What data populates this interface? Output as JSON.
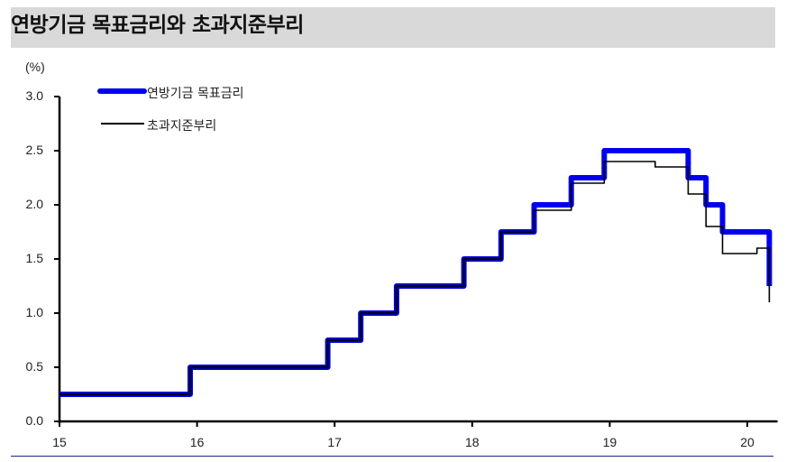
{
  "header": {
    "title": "연방기금 목표금리와 초과지준부리"
  },
  "colors": {
    "fed_target": "#0000ee",
    "fed_target_dark": "#000090",
    "ioer": "#000000",
    "title_bg": "#d9d9d9"
  },
  "chart_data": {
    "type": "line",
    "title": "연방기금 목표금리와 초과지준부리",
    "ylabel": "(%)",
    "xlabel": "",
    "ylim": [
      0.0,
      3.0
    ],
    "yticks": [
      "0.0",
      "0.5",
      "1.0",
      "1.5",
      "2.0",
      "2.5",
      "3.0"
    ],
    "xticks": [
      "15",
      "16",
      "17",
      "18",
      "19",
      "20"
    ],
    "xlim": [
      15,
      20.22
    ],
    "legend": [
      "연방기금 목표금리",
      "초과지준부리"
    ],
    "legend_position": "top-left",
    "grid": false,
    "series": [
      {
        "name": "연방기금 목표금리",
        "style": "step",
        "points": [
          [
            15.0,
            0.25
          ],
          [
            15.95,
            0.25
          ],
          [
            15.95,
            0.5
          ],
          [
            16.95,
            0.5
          ],
          [
            16.95,
            0.75
          ],
          [
            17.19,
            0.75
          ],
          [
            17.19,
            1.0
          ],
          [
            17.45,
            1.0
          ],
          [
            17.45,
            1.25
          ],
          [
            17.94,
            1.25
          ],
          [
            17.94,
            1.5
          ],
          [
            18.21,
            1.5
          ],
          [
            18.21,
            1.75
          ],
          [
            18.45,
            1.75
          ],
          [
            18.45,
            2.0
          ],
          [
            18.72,
            2.0
          ],
          [
            18.72,
            2.25
          ],
          [
            18.96,
            2.25
          ],
          [
            18.96,
            2.5
          ],
          [
            19.57,
            2.5
          ],
          [
            19.57,
            2.25
          ],
          [
            19.7,
            2.25
          ],
          [
            19.7,
            2.0
          ],
          [
            19.82,
            2.0
          ],
          [
            19.82,
            1.75
          ],
          [
            20.16,
            1.75
          ],
          [
            20.16,
            1.25
          ]
        ]
      },
      {
        "name": "초과지준부리",
        "style": "step",
        "points": [
          [
            15.0,
            0.25
          ],
          [
            15.95,
            0.25
          ],
          [
            15.95,
            0.5
          ],
          [
            16.95,
            0.5
          ],
          [
            16.95,
            0.75
          ],
          [
            17.19,
            0.75
          ],
          [
            17.19,
            1.0
          ],
          [
            17.45,
            1.0
          ],
          [
            17.45,
            1.25
          ],
          [
            17.94,
            1.25
          ],
          [
            17.94,
            1.5
          ],
          [
            18.21,
            1.5
          ],
          [
            18.21,
            1.75
          ],
          [
            18.45,
            1.75
          ],
          [
            18.45,
            1.95
          ],
          [
            18.72,
            1.95
          ],
          [
            18.72,
            2.2
          ],
          [
            18.96,
            2.2
          ],
          [
            18.96,
            2.4
          ],
          [
            19.33,
            2.4
          ],
          [
            19.33,
            2.35
          ],
          [
            19.57,
            2.35
          ],
          [
            19.57,
            2.1
          ],
          [
            19.7,
            2.1
          ],
          [
            19.7,
            1.8
          ],
          [
            19.82,
            1.8
          ],
          [
            19.82,
            1.55
          ],
          [
            20.07,
            1.55
          ],
          [
            20.07,
            1.6
          ],
          [
            20.16,
            1.6
          ],
          [
            20.16,
            1.1
          ]
        ]
      }
    ]
  }
}
